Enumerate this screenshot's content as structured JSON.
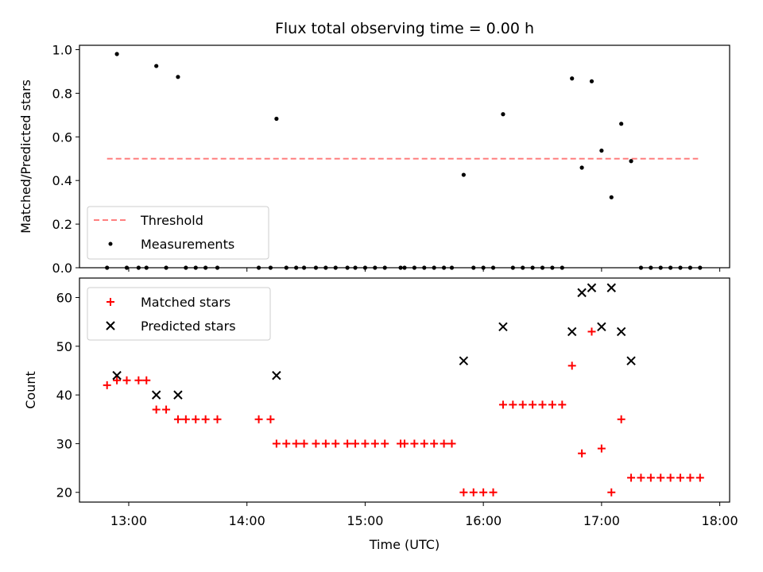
{
  "chart_data": [
    {
      "type": "scatter",
      "title": "Flux total observing time = 0.00 h",
      "xlabel": "",
      "ylabel": "Matched/Predicted stars",
      "ylim": [
        0.0,
        1.02
      ],
      "xlim": [
        "12:35",
        "18:05"
      ],
      "grid": false,
      "legend_position": "lower-left",
      "x_ticks": [
        "13:00",
        "14:00",
        "15:00",
        "16:00",
        "17:00",
        "18:00"
      ],
      "y_ticks": [
        "0.0",
        "0.2",
        "0.4",
        "0.6",
        "0.8",
        "1.0"
      ],
      "threshold": {
        "name": "Threshold",
        "value": 0.5,
        "x_start": "12:49",
        "x_end": "17:49",
        "color": "#ff7f7f"
      },
      "measurements": {
        "name": "Measurements",
        "color": "#000000",
        "points": [
          {
            "t": "12:49",
            "v": 0.0
          },
          {
            "t": "12:54",
            "v": 0.98
          },
          {
            "t": "12:59",
            "v": 0.0
          },
          {
            "t": "13:05",
            "v": 0.0
          },
          {
            "t": "13:09",
            "v": 0.0
          },
          {
            "t": "13:14",
            "v": 0.925
          },
          {
            "t": "13:19",
            "v": 0.0
          },
          {
            "t": "13:25",
            "v": 0.875
          },
          {
            "t": "13:29",
            "v": 0.0
          },
          {
            "t": "13:34",
            "v": 0.0
          },
          {
            "t": "13:39",
            "v": 0.0
          },
          {
            "t": "13:45",
            "v": 0.0
          },
          {
            "t": "14:06",
            "v": 0.0
          },
          {
            "t": "14:12",
            "v": 0.0
          },
          {
            "t": "14:15",
            "v": 0.683
          },
          {
            "t": "14:20",
            "v": 0.0
          },
          {
            "t": "14:25",
            "v": 0.0
          },
          {
            "t": "14:29",
            "v": 0.0
          },
          {
            "t": "14:35",
            "v": 0.0
          },
          {
            "t": "14:40",
            "v": 0.0
          },
          {
            "t": "14:45",
            "v": 0.0
          },
          {
            "t": "14:51",
            "v": 0.0
          },
          {
            "t": "14:55",
            "v": 0.0
          },
          {
            "t": "15:00",
            "v": 0.0
          },
          {
            "t": "15:05",
            "v": 0.0
          },
          {
            "t": "15:10",
            "v": 0.0
          },
          {
            "t": "15:18",
            "v": 0.0
          },
          {
            "t": "15:20",
            "v": 0.0
          },
          {
            "t": "15:25",
            "v": 0.0
          },
          {
            "t": "15:30",
            "v": 0.0
          },
          {
            "t": "15:35",
            "v": 0.0
          },
          {
            "t": "15:40",
            "v": 0.0
          },
          {
            "t": "15:44",
            "v": 0.0
          },
          {
            "t": "15:50",
            "v": 0.426
          },
          {
            "t": "15:55",
            "v": 0.0
          },
          {
            "t": "16:00",
            "v": 0.0
          },
          {
            "t": "16:05",
            "v": 0.0
          },
          {
            "t": "16:10",
            "v": 0.704
          },
          {
            "t": "16:15",
            "v": 0.0
          },
          {
            "t": "16:20",
            "v": 0.0
          },
          {
            "t": "16:25",
            "v": 0.0
          },
          {
            "t": "16:30",
            "v": 0.0
          },
          {
            "t": "16:35",
            "v": 0.0
          },
          {
            "t": "16:40",
            "v": 0.0
          },
          {
            "t": "16:45",
            "v": 0.868
          },
          {
            "t": "16:50",
            "v": 0.459
          },
          {
            "t": "16:55",
            "v": 0.855
          },
          {
            "t": "17:00",
            "v": 0.537
          },
          {
            "t": "17:05",
            "v": 0.323
          },
          {
            "t": "17:10",
            "v": 0.66
          },
          {
            "t": "17:15",
            "v": 0.489
          },
          {
            "t": "17:20",
            "v": 0.0
          },
          {
            "t": "17:25",
            "v": 0.0
          },
          {
            "t": "17:30",
            "v": 0.0
          },
          {
            "t": "17:35",
            "v": 0.0
          },
          {
            "t": "17:40",
            "v": 0.0
          },
          {
            "t": "17:45",
            "v": 0.0
          },
          {
            "t": "17:50",
            "v": 0.0
          }
        ]
      }
    },
    {
      "type": "scatter",
      "title": "",
      "xlabel": "Time (UTC)",
      "ylabel": "Count",
      "ylim": [
        18,
        64
      ],
      "xlim": [
        "12:35",
        "18:05"
      ],
      "grid": false,
      "legend_position": "upper-left",
      "x_ticks": [
        "13:00",
        "14:00",
        "15:00",
        "16:00",
        "17:00",
        "18:00"
      ],
      "y_ticks": [
        "20",
        "30",
        "40",
        "50",
        "60"
      ],
      "matched": {
        "name": "Matched stars",
        "color": "#ff0000",
        "marker": "plus",
        "points": [
          {
            "t": "12:49",
            "v": 42
          },
          {
            "t": "12:54",
            "v": 43
          },
          {
            "t": "12:59",
            "v": 43
          },
          {
            "t": "13:05",
            "v": 43
          },
          {
            "t": "13:09",
            "v": 43
          },
          {
            "t": "13:14",
            "v": 37
          },
          {
            "t": "13:19",
            "v": 37
          },
          {
            "t": "13:25",
            "v": 35
          },
          {
            "t": "13:29",
            "v": 35
          },
          {
            "t": "13:34",
            "v": 35
          },
          {
            "t": "13:39",
            "v": 35
          },
          {
            "t": "13:45",
            "v": 35
          },
          {
            "t": "14:06",
            "v": 35
          },
          {
            "t": "14:12",
            "v": 35
          },
          {
            "t": "14:15",
            "v": 30
          },
          {
            "t": "14:20",
            "v": 30
          },
          {
            "t": "14:25",
            "v": 30
          },
          {
            "t": "14:29",
            "v": 30
          },
          {
            "t": "14:35",
            "v": 30
          },
          {
            "t": "14:40",
            "v": 30
          },
          {
            "t": "14:45",
            "v": 30
          },
          {
            "t": "14:51",
            "v": 30
          },
          {
            "t": "14:55",
            "v": 30
          },
          {
            "t": "15:00",
            "v": 30
          },
          {
            "t": "15:05",
            "v": 30
          },
          {
            "t": "15:10",
            "v": 30
          },
          {
            "t": "15:18",
            "v": 30
          },
          {
            "t": "15:20",
            "v": 30
          },
          {
            "t": "15:25",
            "v": 30
          },
          {
            "t": "15:30",
            "v": 30
          },
          {
            "t": "15:35",
            "v": 30
          },
          {
            "t": "15:40",
            "v": 30
          },
          {
            "t": "15:44",
            "v": 30
          },
          {
            "t": "15:50",
            "v": 20
          },
          {
            "t": "15:55",
            "v": 20
          },
          {
            "t": "16:00",
            "v": 20
          },
          {
            "t": "16:05",
            "v": 20
          },
          {
            "t": "16:10",
            "v": 38
          },
          {
            "t": "16:15",
            "v": 38
          },
          {
            "t": "16:20",
            "v": 38
          },
          {
            "t": "16:25",
            "v": 38
          },
          {
            "t": "16:30",
            "v": 38
          },
          {
            "t": "16:35",
            "v": 38
          },
          {
            "t": "16:40",
            "v": 38
          },
          {
            "t": "16:45",
            "v": 46
          },
          {
            "t": "16:50",
            "v": 28
          },
          {
            "t": "16:55",
            "v": 53
          },
          {
            "t": "17:00",
            "v": 29
          },
          {
            "t": "17:05",
            "v": 20
          },
          {
            "t": "17:10",
            "v": 35
          },
          {
            "t": "17:15",
            "v": 23
          },
          {
            "t": "17:20",
            "v": 23
          },
          {
            "t": "17:25",
            "v": 23
          },
          {
            "t": "17:30",
            "v": 23
          },
          {
            "t": "17:35",
            "v": 23
          },
          {
            "t": "17:40",
            "v": 23
          },
          {
            "t": "17:45",
            "v": 23
          },
          {
            "t": "17:50",
            "v": 23
          }
        ]
      },
      "predicted": {
        "name": "Predicted stars",
        "color": "#000000",
        "marker": "x",
        "points": [
          {
            "t": "12:54",
            "v": 44
          },
          {
            "t": "13:14",
            "v": 40
          },
          {
            "t": "13:25",
            "v": 40
          },
          {
            "t": "14:15",
            "v": 44
          },
          {
            "t": "15:50",
            "v": 47
          },
          {
            "t": "16:10",
            "v": 54
          },
          {
            "t": "16:45",
            "v": 53
          },
          {
            "t": "16:50",
            "v": 61
          },
          {
            "t": "16:55",
            "v": 62
          },
          {
            "t": "17:00",
            "v": 54
          },
          {
            "t": "17:05",
            "v": 62
          },
          {
            "t": "17:10",
            "v": 53
          },
          {
            "t": "17:15",
            "v": 47
          }
        ]
      }
    }
  ]
}
